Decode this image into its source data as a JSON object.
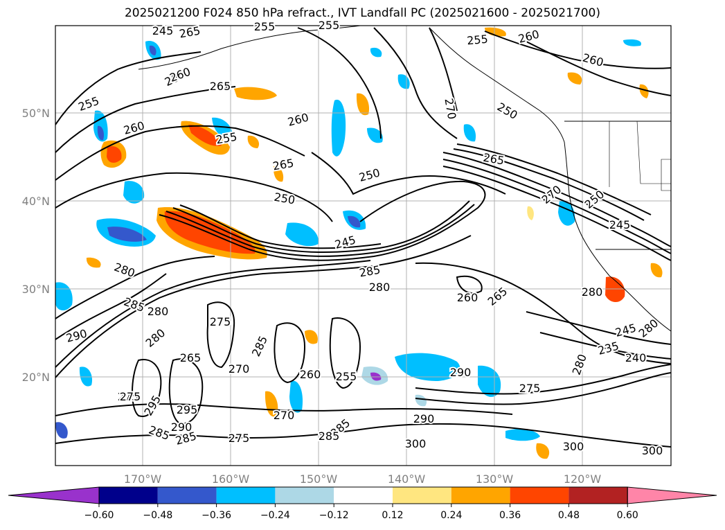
{
  "title": "2025021200 F024 850 hPa refract., IVT Landfall PC (2025021600 - 2025021700)",
  "map": {
    "lat_ticks": [
      "50°N",
      "40°N",
      "30°N",
      "20°N"
    ],
    "lon_ticks": [
      "170°W",
      "160°W",
      "150°W",
      "140°W",
      "130°W",
      "120°W"
    ],
    "contour_labels": [
      "265",
      "255",
      "255",
      "255",
      "260",
      "265",
      "260",
      "255",
      "260",
      "265",
      "255",
      "260",
      "260",
      "270",
      "265",
      "250",
      "250",
      "260",
      "250",
      "245",
      "245",
      "270",
      "250",
      "245",
      "285",
      "280",
      "280",
      "280",
      "260",
      "265",
      "275",
      "285",
      "280",
      "275",
      "280",
      "290",
      "270",
      "285",
      "260",
      "255",
      "245",
      "235",
      "240",
      "280",
      "290",
      "285",
      "270",
      "265",
      "275",
      "295",
      "285",
      "290",
      "285",
      "275",
      "300",
      "300",
      "300",
      "290",
      "285",
      "295",
      "275",
      "280"
    ],
    "colors": {
      "land_border": "#000000",
      "grid": "#b0b0b0",
      "contour": "#000000"
    }
  },
  "colorbar": {
    "colors": [
      "#9932cc",
      "#00008b",
      "#3458cc",
      "#00bfff",
      "#add8e6",
      "#ffffff",
      "#ffe680",
      "#ffa500",
      "#ff4500",
      "#b22222",
      "#ff85a8"
    ],
    "tick_labels": [
      "−0.60",
      "−0.48",
      "−0.36",
      "−0.24",
      "−0.12",
      "0.12",
      "0.24",
      "0.36",
      "0.48",
      "0.60"
    ],
    "levels": [
      -0.6,
      -0.48,
      -0.36,
      -0.24,
      -0.12,
      0.12,
      0.24,
      0.36,
      0.48,
      0.6
    ]
  }
}
